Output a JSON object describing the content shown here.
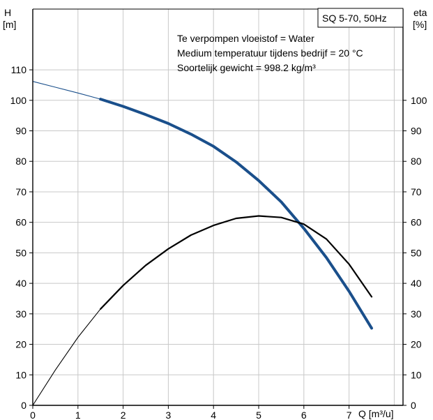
{
  "chart_data": {
    "type": "line",
    "title": "SQ 5-70, 50Hz",
    "annotations": [
      "Te verpompen vloeistof = Water",
      "Medium temperatuur tijdens bedrijf = 20 °C",
      "Soortelijk gewicht = 998.2 kg/m³"
    ],
    "xlabel": "Q [m³/u]",
    "ylabel_left": [
      "H",
      "[m]"
    ],
    "ylabel_right": [
      "eta",
      "[%]"
    ],
    "xlim": [
      0,
      8.2
    ],
    "ylim_left": [
      0,
      120
    ],
    "ylim_right": [
      0,
      120
    ],
    "x_ticks": [
      0,
      1,
      2,
      3,
      4,
      5,
      6,
      7
    ],
    "y_ticks_left": [
      0,
      10,
      20,
      30,
      40,
      50,
      60,
      70,
      80,
      90,
      100,
      110
    ],
    "y_ticks_right": [
      0,
      10,
      20,
      30,
      40,
      50,
      60,
      70,
      80,
      90,
      100
    ],
    "grid": true,
    "series": [
      {
        "axis": "left",
        "color": "#1a4f8b",
        "x": [
          0,
          0.5,
          1.0,
          1.5,
          2.0,
          2.5,
          3.0,
          3.5,
          4.0,
          4.5,
          5.0,
          5.5,
          6.0,
          6.5,
          7.0,
          7.5
        ],
        "y": [
          106.2,
          104.3,
          102.4,
          100.4,
          98.0,
          95.3,
          92.4,
          88.9,
          84.9,
          79.8,
          73.7,
          66.7,
          58.0,
          48.4,
          37.4,
          25.3
        ],
        "thin_until_x": 1.5
      },
      {
        "axis": "right",
        "color": "#000000",
        "x": [
          0,
          0.5,
          1.0,
          1.5,
          2.0,
          2.5,
          3.0,
          3.5,
          4.0,
          4.5,
          5.0,
          5.5,
          6.0,
          6.5,
          7.0,
          7.5
        ],
        "y": [
          0,
          11.6,
          22.3,
          31.6,
          39.3,
          45.9,
          51.3,
          55.8,
          59.0,
          61.3,
          62.1,
          61.6,
          59.4,
          54.5,
          46.3,
          35.6
        ],
        "thin_until_x": 1.5
      }
    ]
  }
}
